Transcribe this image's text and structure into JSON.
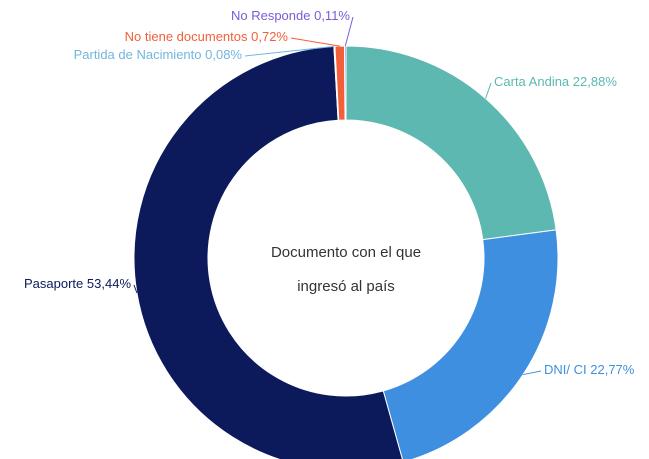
{
  "chart_data": {
    "type": "donut",
    "title": "Documento con el que ingresó al país",
    "categories": [
      "Carta Andina",
      "DNI/ CI",
      "Pasaporte",
      "Partida de Nacimiento",
      "No tiene documentos",
      "No Responde"
    ],
    "values": [
      22.88,
      22.77,
      53.44,
      0.08,
      0.72,
      0.11
    ],
    "value_labels": [
      "22,88%",
      "22,77%",
      "53,44%",
      "0,08%",
      "0,72%",
      "0,11%"
    ],
    "colors": [
      "#5cb8b1",
      "#3f8fe0",
      "#0c1a5c",
      "#72b6e0",
      "#f2603a",
      "#7b5bd8"
    ]
  }
}
